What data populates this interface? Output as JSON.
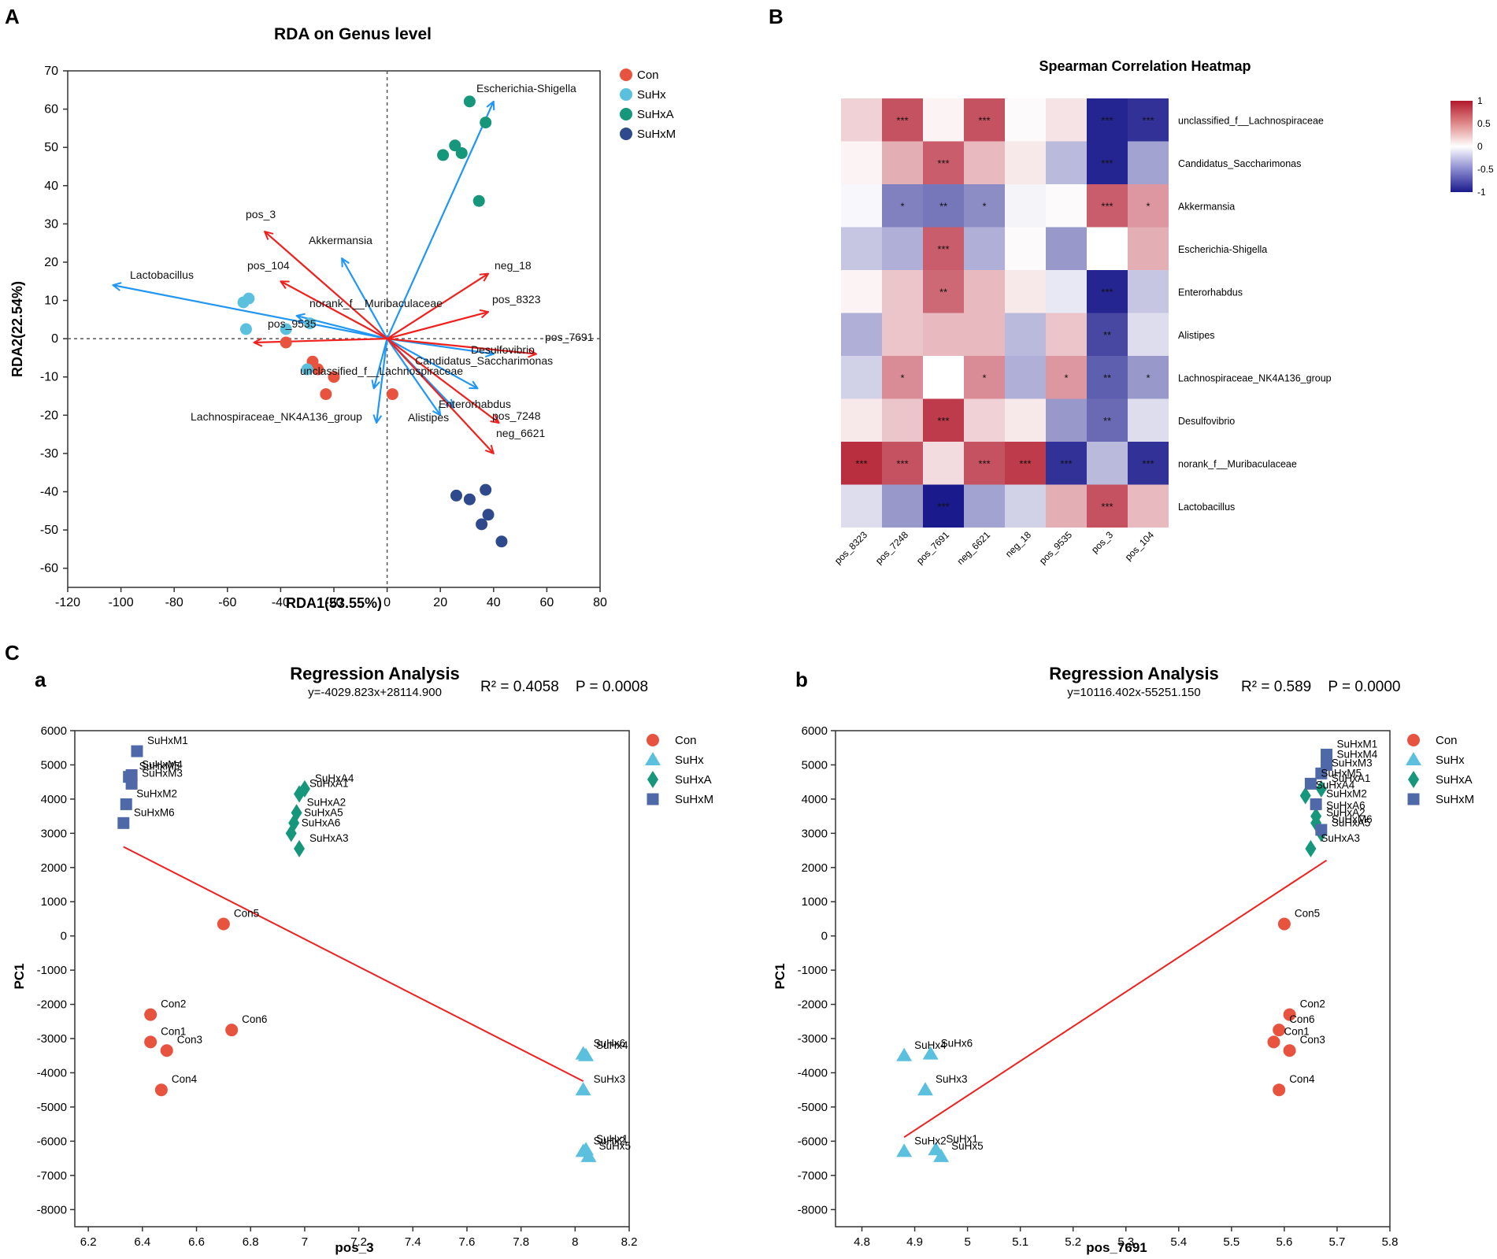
{
  "colors": {
    "Con": "#e8533f",
    "SuHx": "#5bc0de",
    "SuHxA": "#16967a",
    "SuHxM": "#2f4a8c",
    "SuHxM_b": "#4f68a8",
    "species_arrow": "#2196f3",
    "metab_arrow": "#f0201e",
    "fit_line": "#f0201e",
    "hm_pos": "#b2182b",
    "hm_neg": "#1a1a8c"
  },
  "panel_labels": {
    "A": "A",
    "B": "B",
    "C": "C",
    "a": "a",
    "b": "b"
  },
  "chart_data": [
    {
      "id": "rda",
      "type": "scatter",
      "title": "RDA on Genus level",
      "xlabel": "RDA1(53.55%)",
      "ylabel": "RDA2(22.54%)",
      "xlim": [
        -120,
        80
      ],
      "ylim": [
        -65,
        70
      ],
      "xticks": [
        -120,
        -100,
        -80,
        -60,
        -40,
        -20,
        0,
        20,
        40,
        60,
        80
      ],
      "yticks": [
        -60,
        -50,
        -40,
        -30,
        -20,
        -10,
        0,
        10,
        20,
        30,
        40,
        50,
        60,
        70
      ],
      "legend": [
        "Con",
        "SuHx",
        "SuHxA",
        "SuHxM"
      ],
      "series": [
        {
          "name": "Con",
          "points": [
            [
              -38,
              -1
            ],
            [
              -28,
              -6
            ],
            [
              -26,
              -8
            ],
            [
              -20,
              -10
            ],
            [
              -23,
              -14.5
            ],
            [
              2,
              -14.5
            ]
          ]
        },
        {
          "name": "SuHx",
          "points": [
            [
              -52,
              10.5
            ],
            [
              -54,
              9.5
            ],
            [
              -53,
              2.5
            ],
            [
              -38,
              2.5
            ],
            [
              -29,
              4
            ],
            [
              -30,
              -8
            ]
          ]
        },
        {
          "name": "SuHxA",
          "points": [
            [
              31,
              62
            ],
            [
              37,
              56.5
            ],
            [
              21,
              48
            ],
            [
              25.5,
              50.5
            ],
            [
              28,
              48.5
            ],
            [
              34.5,
              36
            ]
          ]
        },
        {
          "name": "SuHxM",
          "points": [
            [
              26,
              -41
            ],
            [
              31,
              -42
            ],
            [
              37,
              -39.5
            ],
            [
              38,
              -46
            ],
            [
              35.5,
              -48.5
            ],
            [
              43,
              -53
            ]
          ]
        }
      ],
      "species_arrows": [
        {
          "name": "Escherichia-Shigella",
          "end": [
            40,
            62
          ]
        },
        {
          "name": "Akkermansia",
          "end": [
            -17,
            21
          ]
        },
        {
          "name": "Lactobacillus",
          "end": [
            -103,
            14
          ]
        },
        {
          "name": "norank_f__Muribaculaceae",
          "end": [
            -34,
            6
          ]
        },
        {
          "name": "Desulfovibrio",
          "end": [
            40,
            -4
          ]
        },
        {
          "name": "Candidatus_Saccharimonas",
          "end": [
            34,
            -13
          ]
        },
        {
          "name": "unclassified_f__Lachnospiraceae",
          "end": [
            -5,
            -13
          ]
        },
        {
          "name": "Lachnospiraceae_NK4A136_group",
          "end": [
            -4,
            -22
          ]
        },
        {
          "name": "Alistipes",
          "end": [
            20,
            -20
          ]
        },
        {
          "name": "Enterorhabdus",
          "end": [
            25,
            -18
          ]
        }
      ],
      "metabolite_arrows": [
        {
          "name": "pos_3",
          "end": [
            -46,
            28
          ]
        },
        {
          "name": "pos_104",
          "end": [
            -40,
            15
          ]
        },
        {
          "name": "neg_18",
          "end": [
            38,
            17
          ]
        },
        {
          "name": "pos_8323",
          "end": [
            38,
            7
          ]
        },
        {
          "name": "pos_7691",
          "end": [
            56,
            -4
          ]
        },
        {
          "name": "pos_9535",
          "end": [
            -50,
            -1
          ]
        },
        {
          "name": "pos_7248",
          "end": [
            42,
            -22
          ]
        },
        {
          "name": "neg_6621",
          "end": [
            40,
            -30
          ]
        }
      ],
      "annotations": [
        "Escherichia-Shigella",
        "pos_3",
        "Akkermansia",
        "Lactobacillus",
        "pos_104",
        "neg_18",
        "norank_f__Muribaculaceae",
        "pos_8323",
        "pos_9535",
        "pos_7691",
        "Desulfovibrio",
        "Candidatus_Saccharimonas",
        "unclassified_f__Lachnospiraceae",
        "Enterorhabdus",
        "pos_7248",
        "Lachnospiraceae_NK4A136_group",
        "Alistipes",
        "neg_6621"
      ]
    },
    {
      "id": "heatmap",
      "type": "heatmap",
      "title": "Spearman Correlation Heatmap",
      "columns": [
        "pos_8323",
        "pos_7248",
        "pos_7691",
        "neg_6621",
        "neg_18",
        "pos_9535",
        "pos_3",
        "pos_104"
      ],
      "rows": [
        "unclassified_f__Lachnospiraceae",
        "Candidatus_Saccharimonas",
        "Akkermansia",
        "Escherichia-Shigella",
        "Enterorhabdus",
        "Alistipes",
        "Lachnospiraceae_NK4A136_group",
        "Desulfovibrio",
        "norank_f__Muribaculaceae",
        "Lactobacillus"
      ],
      "values": [
        [
          0.2,
          0.75,
          0.05,
          0.75,
          0.02,
          0.12,
          -0.95,
          -0.9
        ],
        [
          0.05,
          0.35,
          0.7,
          0.3,
          0.1,
          -0.3,
          -0.95,
          -0.4
        ],
        [
          -0.03,
          -0.55,
          -0.6,
          -0.5,
          -0.05,
          0.02,
          0.7,
          0.45
        ],
        [
          -0.25,
          -0.35,
          0.7,
          -0.35,
          0.02,
          -0.45,
          0.0,
          0.35
        ],
        [
          0.05,
          0.25,
          0.65,
          0.3,
          0.1,
          -0.1,
          -0.95,
          -0.25
        ],
        [
          -0.35,
          0.25,
          0.3,
          0.3,
          -0.3,
          0.25,
          -0.8,
          -0.15
        ],
        [
          -0.2,
          0.5,
          0.0,
          0.5,
          -0.35,
          0.45,
          -0.7,
          -0.45
        ],
        [
          0.1,
          0.25,
          0.85,
          0.2,
          0.1,
          -0.45,
          -0.65,
          -0.15
        ],
        [
          0.9,
          0.75,
          0.15,
          0.75,
          0.85,
          -0.9,
          -0.3,
          -0.9
        ],
        [
          -0.15,
          -0.45,
          -1.0,
          -0.4,
          -0.2,
          0.35,
          0.75,
          0.3
        ]
      ],
      "stars": [
        [
          "",
          "***",
          "",
          "***",
          "",
          "",
          "***",
          "***"
        ],
        [
          "",
          "",
          "***",
          "",
          "",
          "",
          "***",
          ""
        ],
        [
          "",
          "*",
          "**",
          "*",
          "",
          "",
          "***",
          "*"
        ],
        [
          "",
          "",
          "***",
          "",
          "",
          "",
          "",
          ""
        ],
        [
          "",
          "",
          "**",
          "",
          "",
          "",
          "***",
          ""
        ],
        [
          "",
          "",
          "",
          "",
          "",
          "",
          "**",
          ""
        ],
        [
          "",
          "*",
          "",
          "*",
          "",
          "*",
          "**",
          "*"
        ],
        [
          "",
          "",
          "***",
          "",
          "",
          "",
          "**",
          ""
        ],
        [
          "***",
          "***",
          "",
          "***",
          "***",
          "***",
          "",
          "***"
        ],
        [
          "",
          "",
          "***",
          "",
          "",
          "",
          "***",
          ""
        ]
      ],
      "colorbar": {
        "range": [
          -1,
          1
        ],
        "ticks": [
          "1",
          "0.5",
          "0",
          "-0.5",
          "-1"
        ]
      }
    },
    {
      "id": "reg_a",
      "type": "scatter",
      "title": "Regression Analysis",
      "equation": "y=-4029.823x+28114.900",
      "stats": "R² = 0.4058    P = 0.0008",
      "xlabel": "pos_3",
      "ylabel": "PC1",
      "xlim": [
        6.15,
        8.2
      ],
      "ylim": [
        -8500,
        6000
      ],
      "xticks": [
        6.2,
        6.4,
        6.6,
        6.8,
        7,
        7.2,
        7.4,
        7.6,
        7.8,
        8,
        8.2
      ],
      "yticks": [
        6000,
        5000,
        4000,
        3000,
        2000,
        1000,
        0,
        -1000,
        -2000,
        -3000,
        -4000,
        -5000,
        -6000,
        -7000,
        -8000
      ],
      "fit": {
        "x": [
          6.33,
          8.03
        ]
      },
      "legend": [
        "Con",
        "SuHx",
        "SuHxA",
        "SuHxM"
      ],
      "series": [
        {
          "name": "Con",
          "points": [
            {
              "label": "Con1",
              "x": 6.43,
              "y": -3100
            },
            {
              "label": "Con2",
              "x": 6.43,
              "y": -2300
            },
            {
              "label": "Con3",
              "x": 6.49,
              "y": -3350
            },
            {
              "label": "Con4",
              "x": 6.47,
              "y": -4500
            },
            {
              "label": "Con5",
              "x": 6.7,
              "y": 350
            },
            {
              "label": "Con6",
              "x": 6.73,
              "y": -2750
            }
          ]
        },
        {
          "name": "SuHx",
          "points": [
            {
              "label": "SuHx1",
              "x": 8.04,
              "y": -6250
            },
            {
              "label": "SuHx2",
              "x": 8.03,
              "y": -6300
            },
            {
              "label": "SuHx3",
              "x": 8.03,
              "y": -4500
            },
            {
              "label": "SuHx4",
              "x": 8.04,
              "y": -3500
            },
            {
              "label": "SuHx5",
              "x": 8.05,
              "y": -6450
            },
            {
              "label": "SuHx6",
              "x": 8.03,
              "y": -3450
            }
          ]
        },
        {
          "name": "SuHxA",
          "points": [
            {
              "label": "SuHxA1",
              "x": 6.98,
              "y": 4150
            },
            {
              "label": "SuHxA2",
              "x": 6.97,
              "y": 3600
            },
            {
              "label": "SuHxA3",
              "x": 6.98,
              "y": 2550
            },
            {
              "label": "SuHxA4",
              "x": 7.0,
              "y": 4300
            },
            {
              "label": "SuHxA5",
              "x": 6.96,
              "y": 3300
            },
            {
              "label": "SuHxA6",
              "x": 6.95,
              "y": 3000
            }
          ]
        },
        {
          "name": "SuHxM",
          "points": [
            {
              "label": "SuHxM1",
              "x": 6.38,
              "y": 5400
            },
            {
              "label": "SuHxM2",
              "x": 6.34,
              "y": 3850
            },
            {
              "label": "SuHxM3",
              "x": 6.36,
              "y": 4450
            },
            {
              "label": "SuHxM4",
              "x": 6.36,
              "y": 4700
            },
            {
              "label": "SuHxM5",
              "x": 6.35,
              "y": 4650
            },
            {
              "label": "SuHxM6",
              "x": 6.33,
              "y": 3300
            }
          ]
        }
      ],
      "label_order": [
        "SuHxM1",
        "SuHxM4",
        "SuHxM5",
        "SuHxM3",
        "SuHxM2",
        "SuHxM6",
        "SuHxA1",
        "SuHxA4",
        "SuHxA2",
        "SuHxA5",
        "SuHxA6",
        "SuHxA3",
        "Con5",
        "Con2",
        "Con6",
        "Con1",
        "Con3",
        "Con4",
        "SuHx6",
        "SuHx4",
        "SuHx3",
        "SuHx1",
        "SuHx2",
        "SuHx5"
      ]
    },
    {
      "id": "reg_b",
      "type": "scatter",
      "title": "Regression Analysis",
      "equation": "y=10116.402x-55251.150",
      "stats": "R² = 0.589    P = 0.0000",
      "xlabel": "pos_7691",
      "ylabel": "PC1",
      "xlim": [
        4.75,
        5.8
      ],
      "ylim": [
        -8500,
        6000
      ],
      "xticks": [
        4.8,
        4.9,
        5,
        5.1,
        5.2,
        5.3,
        5.4,
        5.5,
        5.6,
        5.7,
        5.8
      ],
      "yticks": [
        6000,
        5000,
        4000,
        3000,
        2000,
        1000,
        0,
        -1000,
        -2000,
        -3000,
        -4000,
        -5000,
        -6000,
        -7000,
        -8000
      ],
      "fit": {
        "x": [
          4.88,
          5.68
        ]
      },
      "legend": [
        "Con",
        "SuHx",
        "SuHxA",
        "SuHxM"
      ],
      "series": [
        {
          "name": "Con",
          "points": [
            {
              "label": "Con1",
              "x": 5.58,
              "y": -3100
            },
            {
              "label": "Con2",
              "x": 5.61,
              "y": -2300
            },
            {
              "label": "Con3",
              "x": 5.61,
              "y": -3350
            },
            {
              "label": "Con4",
              "x": 5.59,
              "y": -4500
            },
            {
              "label": "Con5",
              "x": 5.6,
              "y": 350
            },
            {
              "label": "Con6",
              "x": 5.59,
              "y": -2750
            }
          ]
        },
        {
          "name": "SuHx",
          "points": [
            {
              "label": "SuHx1",
              "x": 4.94,
              "y": -6250
            },
            {
              "label": "SuHx2",
              "x": 4.88,
              "y": -6300
            },
            {
              "label": "SuHx3",
              "x": 4.92,
              "y": -4500
            },
            {
              "label": "SuHx4",
              "x": 4.88,
              "y": -3500
            },
            {
              "label": "SuHx5",
              "x": 4.95,
              "y": -6450
            },
            {
              "label": "SuHx6",
              "x": 4.93,
              "y": -3450
            }
          ]
        },
        {
          "name": "SuHxA",
          "points": [
            {
              "label": "SuHxA1",
              "x": 5.67,
              "y": 4300
            },
            {
              "label": "SuHxA2",
              "x": 5.66,
              "y": 3300
            },
            {
              "label": "SuHxA3",
              "x": 5.65,
              "y": 2550
            },
            {
              "label": "SuHxA4",
              "x": 5.64,
              "y": 4100
            },
            {
              "label": "SuHxA5",
              "x": 5.67,
              "y": 3000
            },
            {
              "label": "SuHxA6",
              "x": 5.66,
              "y": 3500
            }
          ]
        },
        {
          "name": "SuHxM",
          "points": [
            {
              "label": "SuHxM1",
              "x": 5.68,
              "y": 5300
            },
            {
              "label": "SuHxM2",
              "x": 5.66,
              "y": 3850
            },
            {
              "label": "SuHxM3",
              "x": 5.67,
              "y": 4750
            },
            {
              "label": "SuHxM4",
              "x": 5.68,
              "y": 5000
            },
            {
              "label": "SuHxM5",
              "x": 5.65,
              "y": 4450
            },
            {
              "label": "SuHxM6",
              "x": 5.67,
              "y": 3100
            }
          ]
        }
      ],
      "label_order": [
        "SuHxM1",
        "SuHxM4",
        "SuHxM3",
        "SuHxM5",
        "SuHxA1",
        "SuHxA4",
        "SuHxM2",
        "SuHxA2",
        "SuHxM6",
        "SuHxA5",
        "SuHxA6",
        "SuHxA3",
        "Con5",
        "Con2",
        "Con6",
        "Con1",
        "Con3",
        "Con4",
        "SuHx6",
        "SuHx4",
        "SuHx3",
        "SuHx2",
        "SuHx5",
        "SuHx1"
      ]
    }
  ]
}
